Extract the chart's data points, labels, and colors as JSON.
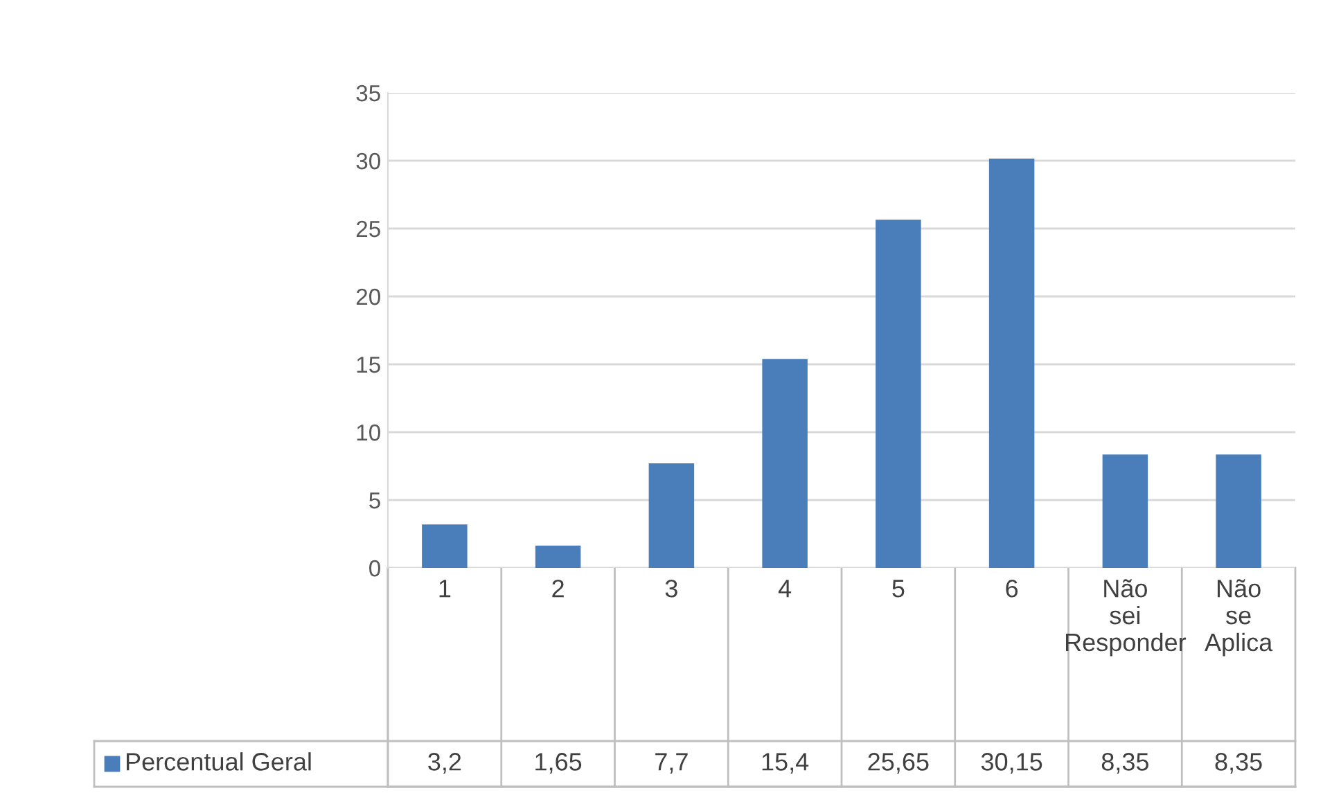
{
  "chart_data": {
    "type": "bar",
    "categories": [
      "1",
      "2",
      "3",
      "4",
      "5",
      "6",
      "Não sei Responder",
      "Não se Aplica"
    ],
    "series": [
      {
        "name": "Percentual Geral",
        "color": "#4a7ebb",
        "values": [
          3.2,
          1.65,
          7.7,
          15.4,
          25.65,
          30.15,
          8.35,
          8.35
        ],
        "value_labels": [
          "3,2",
          "1,65",
          "7,7",
          "15,4",
          "25,65",
          "30,15",
          "8,35",
          "8,35"
        ]
      }
    ],
    "ylim": [
      0,
      35
    ],
    "yticks": [
      0,
      5,
      10,
      15,
      20,
      25,
      30,
      35
    ],
    "grid": "y",
    "legend": "bottom"
  }
}
